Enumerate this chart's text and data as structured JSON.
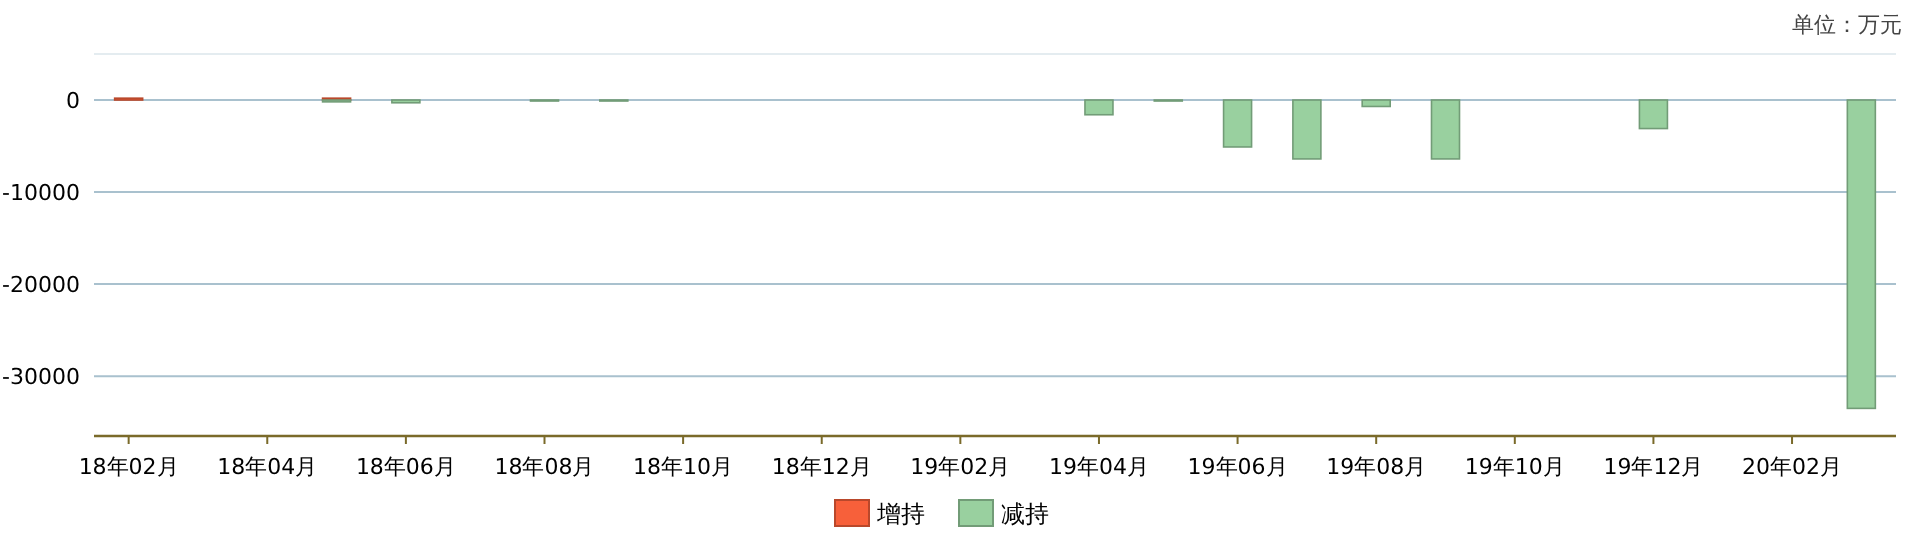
{
  "chart_data": {
    "type": "bar",
    "annotations": [
      "单位：万元"
    ],
    "categories": [
      "18年02月",
      null,
      "18年04月",
      null,
      "18年06月",
      null,
      "18年08月",
      null,
      "18年10月",
      null,
      "18年12月",
      null,
      "19年02月",
      null,
      "19年04月",
      null,
      "19年06月",
      null,
      "19年08月",
      null,
      "19年10月",
      null,
      "19年12月",
      null,
      "20年02月",
      null
    ],
    "series": [
      {
        "name": "增持",
        "color": "#f7603a",
        "values": [
          200,
          null,
          null,
          200,
          null,
          null,
          null,
          null,
          null,
          null,
          null,
          null,
          null,
          null,
          null,
          null,
          null,
          null,
          null,
          null,
          null,
          null,
          null,
          null,
          null,
          null
        ]
      },
      {
        "name": "减持",
        "color": "#99d09f",
        "values": [
          null,
          null,
          null,
          -200,
          -300,
          null,
          -100,
          -100,
          null,
          null,
          null,
          null,
          null,
          null,
          -1600,
          -100,
          -5100,
          -6400,
          -700,
          -6400,
          null,
          null,
          -3100,
          null,
          null,
          -33500
        ]
      }
    ],
    "ylim": [
      -36500,
      5000
    ],
    "yticks": [
      -30000,
      -20000,
      -10000,
      0
    ],
    "grid": "y",
    "legend": "bottom"
  }
}
